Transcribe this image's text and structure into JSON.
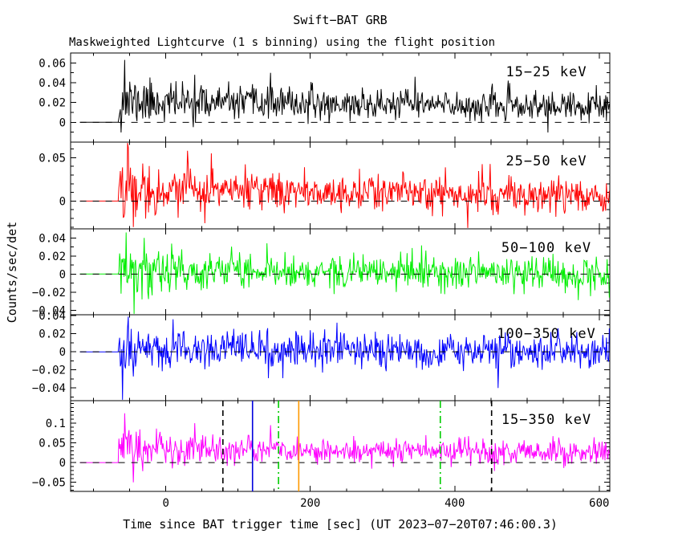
{
  "chart_data": {
    "type": "line",
    "title": "Swift−BAT GRB",
    "subtitle": "Maskweighted Lightcurve (1 s binning) using the flight position",
    "xlabel": "Time since BAT trigger time [sec] (UT 2023−07−20T07:46:00.3)",
    "ylabel": "Counts/sec/det",
    "grid": false,
    "x_range_sec": [
      -132,
      615
    ],
    "x_major_ticks": [
      0,
      200,
      400,
      600
    ],
    "x_tick_labels": [
      "0",
      "200",
      "400",
      "600"
    ],
    "x_minor_step_sec": 50,
    "binning_sec": 1,
    "data_start_sec": -119,
    "burst_onset_sec": -65,
    "zero_line_style": "dashed",
    "panels": [
      {
        "label": "15−25 keV",
        "color": "#000000",
        "label_color": "#000000",
        "ylim": [
          -0.02,
          0.07
        ],
        "yticks": [
          0,
          0.02,
          0.04,
          0.06
        ],
        "ytick_labels": [
          "0",
          "0.02",
          "0.04",
          "0.06"
        ],
        "y_minor_step": 0.01,
        "mean_start": 0.021,
        "mean_end": 0.015,
        "sigma": 0.0075,
        "burst_sigma": 0.007,
        "burst_tau_sec": 60,
        "spikes": [
          [
            -57,
            0.063
          ],
          [
            40,
            0.048
          ],
          [
            145,
            0.05
          ],
          [
            345,
            0.046
          ]
        ],
        "seed": 11
      },
      {
        "label": "25−50 keV",
        "color": "#ff0000",
        "label_color": "#ff0000",
        "ylim": [
          -0.032,
          0.068
        ],
        "yticks": [
          0,
          0.05
        ],
        "ytick_labels": [
          "0",
          "0.05"
        ],
        "y_minor_step": 0.01,
        "mean_start": 0.014,
        "mean_end": 0.006,
        "sigma": 0.0105,
        "burst_sigma": 0.008,
        "burst_tau_sec": 55,
        "spikes": [
          [
            -52,
            0.062
          ],
          [
            -45,
            -0.03
          ],
          [
            30,
            0.058
          ],
          [
            63,
            0.055
          ],
          [
            418,
            -0.031
          ]
        ],
        "seed": 22
      },
      {
        "label": "50−100 keV",
        "color": "#00ee00",
        "label_color": "#00ee00",
        "ylim": [
          -0.045,
          0.05
        ],
        "yticks": [
          -0.04,
          -0.02,
          0,
          0.02,
          0.04
        ],
        "ytick_labels": [
          "−0.04",
          "−0.02",
          "0",
          "0.02",
          "0.04"
        ],
        "y_minor_step": 0.01,
        "mean_start": 0.004,
        "mean_end": 0.0,
        "sigma": 0.0095,
        "burst_sigma": 0.01,
        "burst_tau_sec": 45,
        "spikes": [
          [
            -55,
            0.046
          ],
          [
            -44,
            -0.044
          ],
          [
            -30,
            0.04
          ],
          [
            140,
            0.034
          ]
        ],
        "seed": 33
      },
      {
        "label": "100−350 keV",
        "color": "#0000ff",
        "label_color": "#000000",
        "ylim": [
          -0.054,
          0.041
        ],
        "yticks": [
          -0.04,
          -0.02,
          0,
          0.02,
          0.04
        ],
        "ytick_labels": [
          "−0.04",
          "−0.02",
          "0",
          "0.02",
          "0.04"
        ],
        "y_minor_step": 0.01,
        "mean_start": 0.002,
        "mean_end": 0.0,
        "sigma": 0.0095,
        "burst_sigma": 0.01,
        "burst_tau_sec": 45,
        "spikes": [
          [
            -60,
            -0.053
          ],
          [
            -52,
            0.039
          ],
          [
            10,
            0.036
          ],
          [
            460,
            -0.04
          ]
        ],
        "seed": 44
      },
      {
        "label": "15−350 keV",
        "color": "#ff00ff",
        "label_color": "#ff00ff",
        "ylim": [
          -0.073,
          0.157
        ],
        "yticks": [
          -0.05,
          0,
          0.05,
          0.1
        ],
        "ytick_labels": [
          "−0.05",
          "0",
          "0.05",
          "0.1"
        ],
        "y_minor_step": 0.01,
        "mean_start": 0.035,
        "mean_end": 0.024,
        "sigma": 0.016,
        "burst_sigma": 0.013,
        "burst_tau_sec": 60,
        "spikes": [
          [
            -57,
            0.125
          ],
          [
            -45,
            -0.05
          ],
          [
            40,
            0.1
          ],
          [
            145,
            0.095
          ]
        ],
        "seed": 55
      }
    ],
    "markers": [
      {
        "time_sec": 79,
        "style": "dashed",
        "color": "#000000"
      },
      {
        "time_sec": 120,
        "style": "solid",
        "color": "#0000dd"
      },
      {
        "time_sec": 156,
        "style": "dashdot",
        "color": "#00cc00"
      },
      {
        "time_sec": 184,
        "style": "solid",
        "color": "#ff9900"
      },
      {
        "time_sec": 380,
        "style": "dashdot",
        "color": "#00cc00"
      },
      {
        "time_sec": 451,
        "style": "dashed",
        "color": "#000000"
      }
    ]
  }
}
